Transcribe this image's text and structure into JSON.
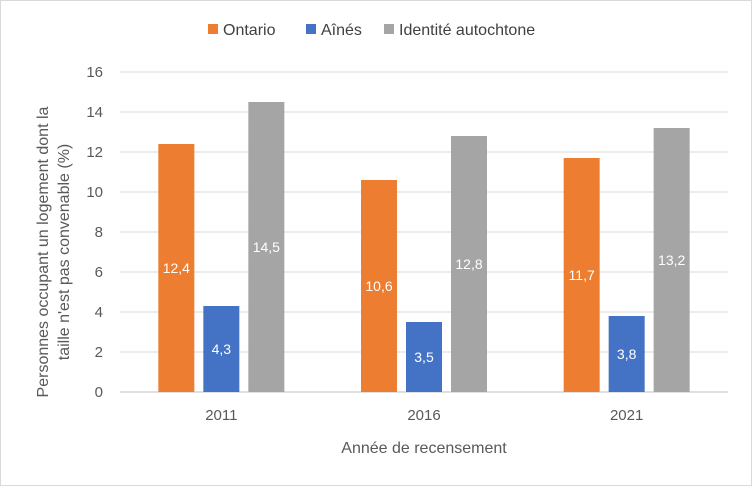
{
  "chart_data": {
    "type": "bar",
    "categories": [
      "2011",
      "2016",
      "2021"
    ],
    "series": [
      {
        "name": "Ontario",
        "values": [
          12.4,
          10.6,
          11.7
        ],
        "labels": [
          "12,4",
          "10,6",
          "11,7"
        ],
        "color": "#ed7d31"
      },
      {
        "name": "Aînés",
        "values": [
          4.3,
          3.5,
          3.8
        ],
        "labels": [
          "4,3",
          "3,5",
          "3,8"
        ],
        "color": "#4472c4"
      },
      {
        "name": "Identité autochtone",
        "values": [
          14.5,
          12.8,
          13.2
        ],
        "labels": [
          "14,5",
          "12,8",
          "13,2"
        ],
        "color": "#a5a5a5"
      }
    ],
    "xlabel": "Année de recensement",
    "ylabel_lines": [
      "Personnes occupant un logement dont la",
      "taille n'est pas convenable (%)"
    ],
    "ylim": [
      0,
      16
    ],
    "yticks": [
      0,
      2,
      4,
      6,
      8,
      10,
      12,
      14,
      16
    ],
    "grid": true,
    "legend_position": "top"
  }
}
